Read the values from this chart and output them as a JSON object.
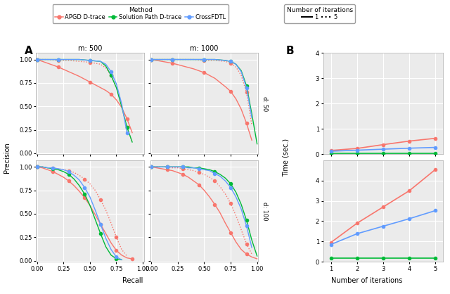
{
  "colors": {
    "apgd": "#F8766D",
    "solpath": "#00BA38",
    "crossfdtl": "#619CFF"
  },
  "pr_curves": {
    "m500_d50": {
      "apgd_solid": {
        "recall": [
          0.0,
          0.05,
          0.1,
          0.2,
          0.3,
          0.4,
          0.5,
          0.6,
          0.65,
          0.7,
          0.75,
          0.8,
          0.85,
          0.9
        ],
        "precision": [
          1.0,
          0.98,
          0.96,
          0.92,
          0.87,
          0.82,
          0.76,
          0.7,
          0.67,
          0.63,
          0.57,
          0.49,
          0.37,
          0.22
        ]
      },
      "apgd_dashed": {
        "recall": [
          0.0,
          0.05,
          0.1,
          0.2,
          0.3,
          0.4,
          0.5,
          0.6,
          0.65,
          0.7,
          0.75,
          0.8,
          0.85,
          0.9
        ],
        "precision": [
          1.0,
          1.0,
          1.0,
          0.99,
          0.99,
          0.98,
          0.97,
          0.95,
          0.91,
          0.83,
          0.7,
          0.5,
          0.28,
          0.12
        ]
      },
      "solpath": {
        "recall": [
          0.0,
          0.05,
          0.1,
          0.2,
          0.3,
          0.4,
          0.5,
          0.6,
          0.65,
          0.7,
          0.75,
          0.8,
          0.85,
          0.9
        ],
        "precision": [
          1.0,
          1.0,
          1.0,
          1.0,
          1.0,
          1.0,
          0.99,
          0.98,
          0.93,
          0.83,
          0.7,
          0.5,
          0.28,
          0.12
        ]
      },
      "crossfdtl": {
        "recall": [
          0.0,
          0.05,
          0.1,
          0.2,
          0.3,
          0.4,
          0.5,
          0.6,
          0.65,
          0.7,
          0.75,
          0.8,
          0.85
        ],
        "precision": [
          1.0,
          1.0,
          1.0,
          1.0,
          1.0,
          1.0,
          0.99,
          0.98,
          0.95,
          0.87,
          0.74,
          0.53,
          0.22
        ]
      }
    },
    "m1000_d50": {
      "apgd_solid": {
        "recall": [
          0.0,
          0.05,
          0.1,
          0.2,
          0.3,
          0.4,
          0.5,
          0.6,
          0.7,
          0.75,
          0.8,
          0.85,
          0.9,
          0.95
        ],
        "precision": [
          1.0,
          0.99,
          0.98,
          0.96,
          0.93,
          0.9,
          0.86,
          0.8,
          0.71,
          0.66,
          0.58,
          0.47,
          0.32,
          0.14
        ]
      },
      "apgd_dashed": {
        "recall": [
          0.0,
          0.05,
          0.1,
          0.2,
          0.3,
          0.4,
          0.5,
          0.6,
          0.7,
          0.75,
          0.8,
          0.85,
          0.9,
          0.95
        ],
        "precision": [
          1.0,
          1.0,
          1.0,
          1.0,
          1.0,
          1.0,
          0.99,
          0.99,
          0.98,
          0.96,
          0.92,
          0.83,
          0.65,
          0.3
        ]
      },
      "solpath": {
        "recall": [
          0.0,
          0.05,
          0.1,
          0.2,
          0.3,
          0.4,
          0.5,
          0.6,
          0.7,
          0.75,
          0.8,
          0.85,
          0.9,
          0.95,
          1.0
        ],
        "precision": [
          1.0,
          1.0,
          1.0,
          1.0,
          1.0,
          1.0,
          1.0,
          1.0,
          0.99,
          0.98,
          0.95,
          0.88,
          0.72,
          0.42,
          0.1
        ]
      },
      "crossfdtl": {
        "recall": [
          0.0,
          0.05,
          0.1,
          0.2,
          0.3,
          0.4,
          0.5,
          0.6,
          0.7,
          0.75,
          0.8,
          0.85,
          0.9,
          0.95
        ],
        "precision": [
          1.0,
          1.0,
          1.0,
          1.0,
          1.0,
          1.0,
          1.0,
          1.0,
          0.99,
          0.98,
          0.95,
          0.87,
          0.7,
          0.38
        ]
      }
    },
    "m500_d100": {
      "apgd_solid": {
        "recall": [
          0.0,
          0.05,
          0.1,
          0.15,
          0.2,
          0.25,
          0.3,
          0.35,
          0.4,
          0.45,
          0.5,
          0.55,
          0.6,
          0.65,
          0.7,
          0.75,
          0.8,
          0.85,
          0.9
        ],
        "precision": [
          1.0,
          0.99,
          0.97,
          0.95,
          0.92,
          0.89,
          0.85,
          0.8,
          0.74,
          0.67,
          0.59,
          0.49,
          0.39,
          0.29,
          0.19,
          0.11,
          0.06,
          0.03,
          0.02
        ]
      },
      "apgd_dashed": {
        "recall": [
          0.0,
          0.05,
          0.1,
          0.15,
          0.2,
          0.25,
          0.3,
          0.35,
          0.4,
          0.45,
          0.5,
          0.55,
          0.6,
          0.65,
          0.7,
          0.75,
          0.8,
          0.85
        ],
        "precision": [
          1.0,
          1.0,
          0.99,
          0.99,
          0.98,
          0.97,
          0.96,
          0.94,
          0.91,
          0.87,
          0.82,
          0.75,
          0.65,
          0.54,
          0.4,
          0.25,
          0.12,
          0.05
        ]
      },
      "solpath": {
        "recall": [
          0.0,
          0.05,
          0.1,
          0.15,
          0.2,
          0.25,
          0.3,
          0.35,
          0.4,
          0.45,
          0.5,
          0.55,
          0.6,
          0.65,
          0.7,
          0.75,
          0.8
        ],
        "precision": [
          1.0,
          1.0,
          0.99,
          0.98,
          0.97,
          0.95,
          0.92,
          0.87,
          0.8,
          0.71,
          0.59,
          0.44,
          0.29,
          0.15,
          0.06,
          0.02,
          0.01
        ]
      },
      "crossfdtl": {
        "recall": [
          0.0,
          0.05,
          0.1,
          0.15,
          0.2,
          0.25,
          0.3,
          0.35,
          0.4,
          0.45,
          0.5,
          0.55,
          0.6,
          0.65,
          0.7,
          0.75,
          0.8
        ],
        "precision": [
          1.0,
          1.0,
          0.99,
          0.99,
          0.98,
          0.97,
          0.95,
          0.91,
          0.86,
          0.78,
          0.68,
          0.54,
          0.39,
          0.24,
          0.12,
          0.04,
          0.01
        ]
      }
    },
    "m1000_d100": {
      "apgd_solid": {
        "recall": [
          0.0,
          0.05,
          0.1,
          0.15,
          0.2,
          0.25,
          0.3,
          0.35,
          0.4,
          0.45,
          0.5,
          0.55,
          0.6,
          0.65,
          0.7,
          0.75,
          0.8,
          0.85,
          0.9,
          0.95,
          1.0
        ],
        "precision": [
          1.0,
          0.99,
          0.98,
          0.97,
          0.96,
          0.94,
          0.92,
          0.89,
          0.85,
          0.81,
          0.75,
          0.68,
          0.6,
          0.51,
          0.4,
          0.3,
          0.2,
          0.12,
          0.07,
          0.04,
          0.02
        ]
      },
      "apgd_dashed": {
        "recall": [
          0.0,
          0.05,
          0.1,
          0.15,
          0.2,
          0.25,
          0.3,
          0.35,
          0.4,
          0.45,
          0.5,
          0.55,
          0.6,
          0.65,
          0.7,
          0.75,
          0.8,
          0.85,
          0.9,
          0.95
        ],
        "precision": [
          1.0,
          1.0,
          1.0,
          1.0,
          0.99,
          0.99,
          0.98,
          0.97,
          0.96,
          0.94,
          0.92,
          0.89,
          0.85,
          0.79,
          0.71,
          0.61,
          0.48,
          0.33,
          0.18,
          0.07
        ]
      },
      "solpath": {
        "recall": [
          0.0,
          0.05,
          0.1,
          0.15,
          0.2,
          0.25,
          0.3,
          0.35,
          0.4,
          0.45,
          0.5,
          0.55,
          0.6,
          0.65,
          0.7,
          0.75,
          0.8,
          0.85,
          0.9,
          0.95,
          1.0
        ],
        "precision": [
          1.0,
          1.0,
          1.0,
          1.0,
          1.0,
          1.0,
          1.0,
          1.0,
          0.99,
          0.99,
          0.98,
          0.97,
          0.95,
          0.92,
          0.88,
          0.82,
          0.73,
          0.6,
          0.43,
          0.22,
          0.05
        ]
      },
      "crossfdtl": {
        "recall": [
          0.0,
          0.05,
          0.1,
          0.15,
          0.2,
          0.25,
          0.3,
          0.35,
          0.4,
          0.45,
          0.5,
          0.55,
          0.6,
          0.65,
          0.7,
          0.75,
          0.8,
          0.85,
          0.9,
          0.95
        ],
        "precision": [
          1.0,
          1.0,
          1.0,
          1.0,
          1.0,
          1.0,
          1.0,
          0.99,
          0.99,
          0.98,
          0.97,
          0.96,
          0.93,
          0.9,
          0.85,
          0.78,
          0.68,
          0.55,
          0.37,
          0.14
        ]
      }
    }
  },
  "time_data": {
    "d50": {
      "iterations": [
        1,
        2,
        3,
        4,
        5
      ],
      "apgd": [
        0.15,
        0.23,
        0.38,
        0.52,
        0.63
      ],
      "solpath": [
        0.04,
        0.04,
        0.04,
        0.04,
        0.04
      ],
      "crossfdtl": [
        0.12,
        0.16,
        0.2,
        0.24,
        0.27
      ]
    },
    "d100": {
      "iterations": [
        1,
        2,
        3,
        4,
        5
      ],
      "apgd": [
        0.95,
        1.9,
        2.7,
        3.5,
        4.55
      ],
      "solpath": [
        0.18,
        0.18,
        0.18,
        0.18,
        0.18
      ],
      "crossfdtl": [
        0.85,
        1.38,
        1.75,
        2.12,
        2.52
      ]
    }
  },
  "bg_color": "#EBEBEB",
  "grid_color": "white",
  "title_A": "A",
  "title_B": "B",
  "m500_label": "m: 500",
  "m1000_label": "m: 1000",
  "d50_label": "d: 50",
  "d100_label": "d: 100",
  "xlabel_pr": "Recall",
  "ylabel_pr": "Precision",
  "xlabel_time": "Number of iterations",
  "ylabel_time": "Time (sec.)",
  "ylim_time_d50": [
    0,
    4.0
  ],
  "ylim_time_d100": [
    0,
    5.0
  ],
  "yticks_time_d50": [
    0,
    1,
    2,
    3,
    4
  ],
  "yticks_time_d100": [
    0,
    1,
    2,
    3,
    4
  ]
}
